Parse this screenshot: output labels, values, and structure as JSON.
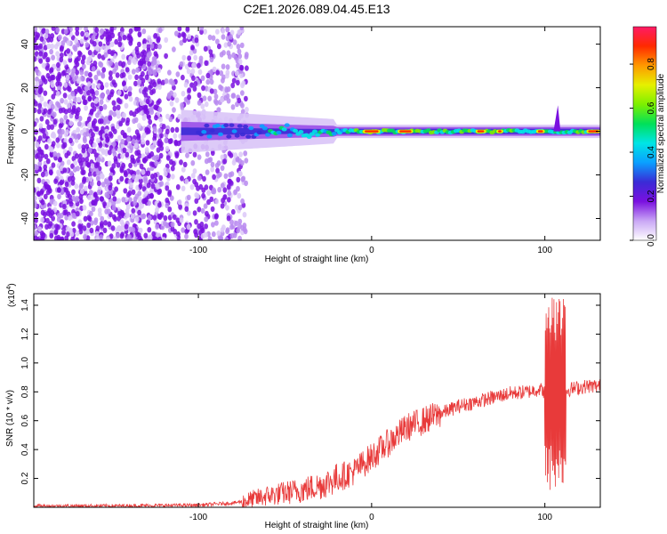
{
  "title": "C2E1.2026.089.04.45.E13",
  "colors": {
    "signal": "#e83a3a",
    "scatter": "#7a10e0",
    "axis": "#000000",
    "background": "#ffffff"
  },
  "chart_data": [
    {
      "type": "heatmap",
      "name": "spectrogram",
      "xlabel": "Height of straight line (km)",
      "ylabel": "Frequency (Hz)",
      "xlim": [
        -195,
        132
      ],
      "ylim": [
        -50,
        48
      ],
      "xticks": [
        -100,
        0,
        100
      ],
      "xtick_labels": [
        "-100",
        "0",
        "100"
      ],
      "yticks": [
        -40,
        -20,
        0,
        20,
        40
      ],
      "ytick_labels": [
        "-40",
        "-20",
        "0",
        "20",
        "40"
      ],
      "noise_region_x": [
        -195,
        -72
      ],
      "ridge_region_x": [
        -110,
        132
      ],
      "ridge_freq_hz": 0,
      "colorbar": {
        "label": "Normalized spectral amplitude",
        "range": [
          0,
          0.97
        ],
        "ticks": [
          0.0,
          0.2,
          0.4,
          0.6,
          0.8
        ],
        "tick_labels": [
          "0.0",
          "0.2",
          "0.4",
          "0.6",
          "0.8"
        ],
        "colormap": [
          "#ffffff",
          "#c9a6f5",
          "#7a10e0",
          "#3a2bd6",
          "#0aa0ff",
          "#00e5e5",
          "#00e05a",
          "#7cf000",
          "#e6f000",
          "#ff9900",
          "#ff2a00",
          "#ff1a66"
        ]
      }
    },
    {
      "type": "line",
      "name": "snr",
      "xlabel": "Height of straight line (km)",
      "ylabel": "SNR (10 * v/v)",
      "y_scale_label": "(x10",
      "y_scale_exponent": "4",
      "y_scale_suffix": ")",
      "xlim": [
        -195,
        132
      ],
      "ylim": [
        0,
        1.48
      ],
      "xticks": [
        -100,
        0,
        100
      ],
      "xtick_labels": [
        "-100",
        "0",
        "100"
      ],
      "yticks": [
        0.2,
        0.4,
        0.6,
        0.8,
        1.0,
        1.2,
        1.4
      ],
      "ytick_labels": [
        "0.2",
        "0.4",
        "0.6",
        "0.8",
        "1.0",
        "1.2",
        "1.4"
      ],
      "x": [
        -195,
        -150,
        -100,
        -80,
        -70,
        -60,
        -50,
        -40,
        -30,
        -20,
        -10,
        0,
        10,
        20,
        30,
        40,
        50,
        60,
        70,
        80,
        90,
        97,
        100,
        105,
        110,
        115,
        120,
        125,
        132
      ],
      "y": [
        0.01,
        0.01,
        0.015,
        0.03,
        0.05,
        0.08,
        0.1,
        0.12,
        0.15,
        0.2,
        0.25,
        0.35,
        0.45,
        0.55,
        0.6,
        0.65,
        0.7,
        0.73,
        0.76,
        0.79,
        0.8,
        0.82,
        0.8,
        0.85,
        0.8,
        0.82,
        0.83,
        0.84,
        0.84
      ],
      "oscillation_region_x": [
        100,
        112
      ],
      "oscillation_range_y": [
        0.1,
        1.46
      ]
    }
  ]
}
